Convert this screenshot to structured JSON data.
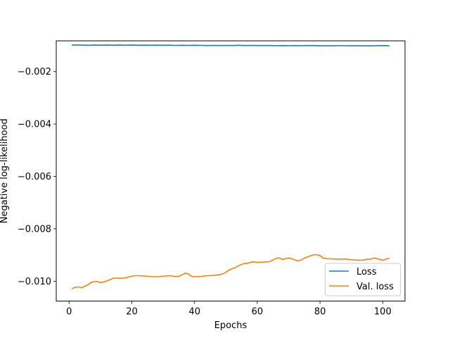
{
  "chart_data": {
    "type": "line",
    "title": "",
    "xlabel": "Epochs",
    "ylabel": "Negative log-likelihood",
    "xlim": [
      -4.1,
      107.1
    ],
    "ylim": [
      -0.01076,
      -0.000825
    ],
    "xticks": [
      0,
      20,
      40,
      60,
      80,
      100
    ],
    "xtick_labels": [
      "0",
      "20",
      "40",
      "60",
      "80",
      "100"
    ],
    "yticks": [
      -0.002,
      -0.004,
      -0.006,
      -0.008,
      -0.01
    ],
    "ytick_labels": [
      "−0.002",
      "−0.004",
      "−0.006",
      "−0.008",
      "−0.010"
    ],
    "grid": false,
    "legend_position": "lower-right",
    "series": [
      {
        "name": "Loss",
        "color": "#1f77b4",
        "points": [
          [
            1,
            -0.000985
          ],
          [
            3,
            -0.000985
          ],
          [
            6,
            -0.000995
          ],
          [
            8,
            -0.000985
          ],
          [
            10,
            -0.00099
          ],
          [
            12,
            -0.000985
          ],
          [
            14,
            -0.00099
          ],
          [
            16,
            -0.000985
          ],
          [
            18,
            -0.00099
          ],
          [
            20,
            -0.000985
          ],
          [
            22,
            -0.000995
          ],
          [
            24,
            -0.00099
          ],
          [
            26,
            -0.000995
          ],
          [
            28,
            -0.00099
          ],
          [
            30,
            -0.000995
          ],
          [
            32,
            -0.00099
          ],
          [
            34,
            -0.001
          ],
          [
            36,
            -0.000995
          ],
          [
            38,
            -0.001
          ],
          [
            40,
            -0.000995
          ],
          [
            42,
            -0.001
          ],
          [
            44,
            -0.001005
          ],
          [
            46,
            -0.001
          ],
          [
            48,
            -0.001005
          ],
          [
            50,
            -0.001
          ],
          [
            52,
            -0.001005
          ],
          [
            54,
            -0.000995
          ],
          [
            56,
            -0.001005
          ],
          [
            58,
            -0.001
          ],
          [
            60,
            -0.001005
          ],
          [
            62,
            -0.001005
          ],
          [
            64,
            -0.001005
          ],
          [
            66,
            -0.00101
          ],
          [
            68,
            -0.001005
          ],
          [
            70,
            -0.00101
          ],
          [
            72,
            -0.001005
          ],
          [
            74,
            -0.00101
          ],
          [
            76,
            -0.001005
          ],
          [
            78,
            -0.001005
          ],
          [
            80,
            -0.001015
          ],
          [
            82,
            -0.00101
          ],
          [
            84,
            -0.001015
          ],
          [
            86,
            -0.00101
          ],
          [
            88,
            -0.00101
          ],
          [
            90,
            -0.001015
          ],
          [
            92,
            -0.00101
          ],
          [
            94,
            -0.001015
          ],
          [
            96,
            -0.001015
          ],
          [
            98,
            -0.00101
          ],
          [
            100,
            -0.001005
          ],
          [
            102,
            -0.001015
          ]
        ]
      },
      {
        "name": "Val. loss",
        "color": "#ff7f0e",
        "points": [
          [
            1,
            -0.01028
          ],
          [
            2,
            -0.01023
          ],
          [
            3,
            -0.01022
          ],
          [
            4,
            -0.01025
          ],
          [
            5,
            -0.01019
          ],
          [
            6,
            -0.01014
          ],
          [
            7,
            -0.01005
          ],
          [
            8,
            -0.01001
          ],
          [
            9,
            -0.01001
          ],
          [
            10,
            -0.01005
          ],
          [
            11,
            -0.01003
          ],
          [
            12,
            -0.00999
          ],
          [
            13,
            -0.00994
          ],
          [
            14,
            -0.00989
          ],
          [
            15,
            -0.00988
          ],
          [
            16,
            -0.00989
          ],
          [
            17,
            -0.00988
          ],
          [
            18,
            -0.00987
          ],
          [
            19,
            -0.00984
          ],
          [
            20,
            -0.00981
          ],
          [
            21,
            -0.00979
          ],
          [
            22,
            -0.00979
          ],
          [
            24,
            -0.0098
          ],
          [
            26,
            -0.00982
          ],
          [
            28,
            -0.00983
          ],
          [
            30,
            -0.00981
          ],
          [
            32,
            -0.00979
          ],
          [
            34,
            -0.00982
          ],
          [
            35,
            -0.00981
          ],
          [
            36,
            -0.00976
          ],
          [
            37,
            -0.00969
          ],
          [
            38,
            -0.00972
          ],
          [
            39,
            -0.00981
          ],
          [
            40,
            -0.00983
          ],
          [
            42,
            -0.00982
          ],
          [
            44,
            -0.00979
          ],
          [
            46,
            -0.00978
          ],
          [
            48,
            -0.00975
          ],
          [
            49,
            -0.00972
          ],
          [
            50,
            -0.00966
          ],
          [
            51,
            -0.00957
          ],
          [
            52,
            -0.00952
          ],
          [
            53,
            -0.00948
          ],
          [
            54,
            -0.00941
          ],
          [
            55,
            -0.00936
          ],
          [
            56,
            -0.00932
          ],
          [
            57,
            -0.00932
          ],
          [
            58,
            -0.00927
          ],
          [
            59,
            -0.00926
          ],
          [
            60,
            -0.00928
          ],
          [
            62,
            -0.00927
          ],
          [
            64,
            -0.00925
          ],
          [
            65,
            -0.00919
          ],
          [
            66,
            -0.00913
          ],
          [
            67,
            -0.00911
          ],
          [
            68,
            -0.00917
          ],
          [
            69,
            -0.00914
          ],
          [
            70,
            -0.00912
          ],
          [
            71,
            -0.00914
          ],
          [
            72,
            -0.00919
          ],
          [
            73,
            -0.00922
          ],
          [
            74,
            -0.00919
          ],
          [
            75,
            -0.00912
          ],
          [
            76,
            -0.00907
          ],
          [
            77,
            -0.00903
          ],
          [
            78,
            -0.00899
          ],
          [
            79,
            -0.00899
          ],
          [
            80,
            -0.00902
          ],
          [
            81,
            -0.00912
          ],
          [
            82,
            -0.00914
          ],
          [
            84,
            -0.00915
          ],
          [
            86,
            -0.00916
          ],
          [
            88,
            -0.00915
          ],
          [
            90,
            -0.00918
          ],
          [
            92,
            -0.0092
          ],
          [
            94,
            -0.00919
          ],
          [
            95,
            -0.00916
          ],
          [
            96,
            -0.00916
          ],
          [
            97,
            -0.00912
          ],
          [
            98,
            -0.00913
          ],
          [
            99,
            -0.00917
          ],
          [
            100,
            -0.0092
          ],
          [
            101,
            -0.00916
          ],
          [
            102,
            -0.00913
          ]
        ]
      }
    ]
  }
}
